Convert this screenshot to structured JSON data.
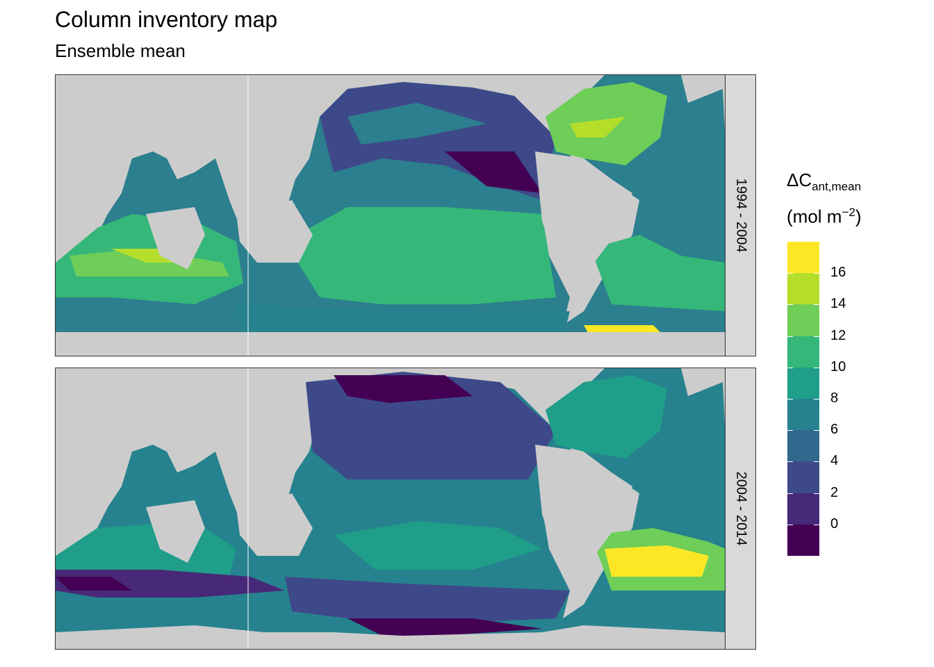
{
  "title": "Column inventory map",
  "subtitle": "Ensemble mean",
  "panels": [
    {
      "label": "1994 - 2004"
    },
    {
      "label": "2004 - 2014"
    }
  ],
  "legend": {
    "symbol": "ΔC",
    "subscript": "ant,mean",
    "unit_prefix": "(mol m",
    "unit_exponent": "−2",
    "unit_suffix": ")",
    "tick_labels": [
      "16",
      "14",
      "12",
      "10",
      "8",
      "6",
      "4",
      "2",
      "0"
    ],
    "colors": [
      "#fde725",
      "#b5de2b",
      "#6ece58",
      "#35b779",
      "#1f9e89",
      "#26828e",
      "#31688e",
      "#3e4989",
      "#482878",
      "#440154"
    ]
  }
}
